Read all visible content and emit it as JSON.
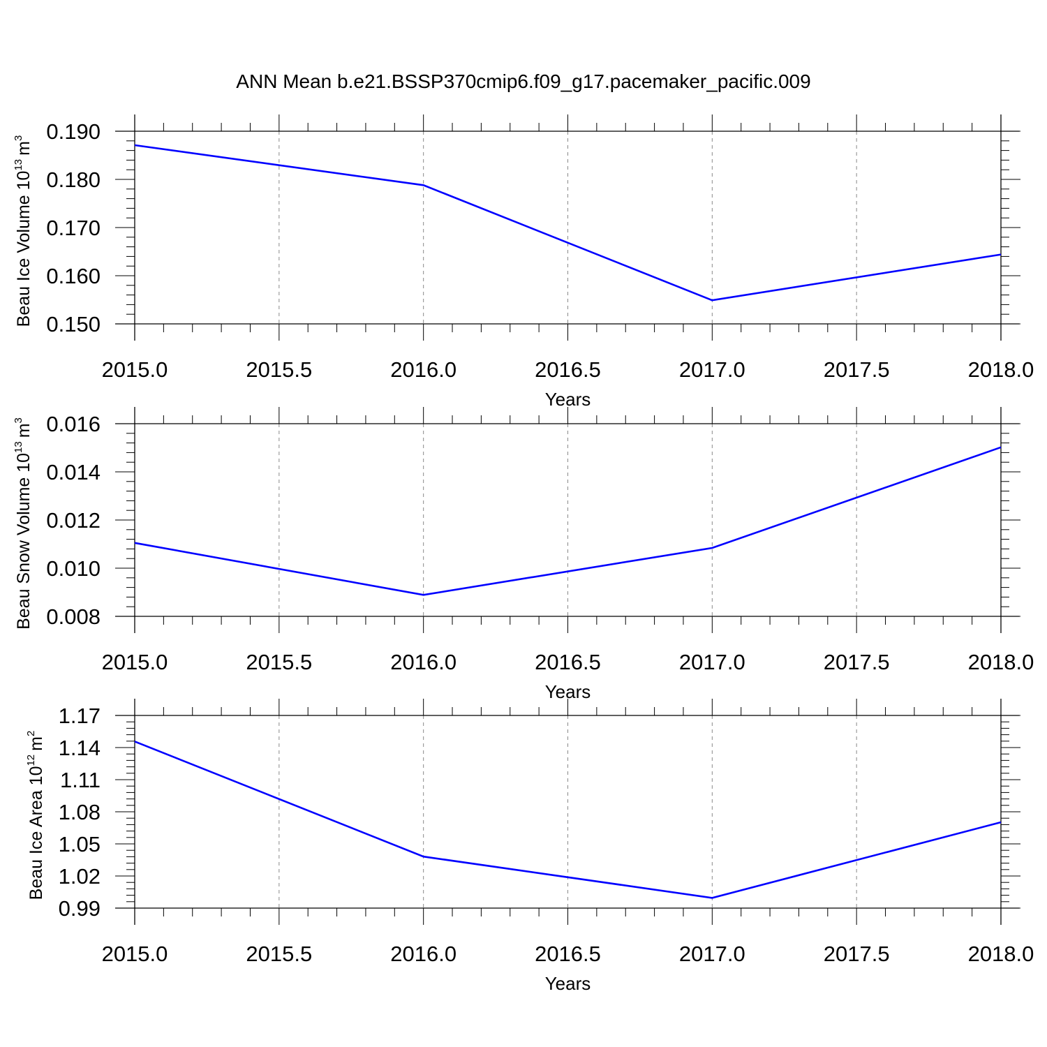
{
  "title": "ANN Mean b.e21.BSSP370cmip6.f09_g17.pacemaker_pacific.009",
  "colors": {
    "series": "#0000ff",
    "axis": "#000000",
    "grid": "#888888"
  },
  "chart_data": [
    {
      "type": "line",
      "xlabel": "Years",
      "ylabel": {
        "text": "Beau Ice Volume 10",
        "exp": "13",
        "unit": "m",
        "unit_exp": "3"
      },
      "xlim": [
        2015.0,
        2018.0
      ],
      "ylim": [
        0.15,
        0.19
      ],
      "xticks": [
        "2015.0",
        "2015.5",
        "2016.0",
        "2016.5",
        "2017.0",
        "2017.5",
        "2018.0"
      ],
      "yticks": [
        "0.150",
        "0.160",
        "0.170",
        "0.180",
        "0.190"
      ],
      "grid": "vertical dashed at major x ticks",
      "series": [
        {
          "x": [
            2015,
            2016,
            2017,
            2018
          ],
          "values": [
            0.1871,
            0.1788,
            0.1549,
            0.1644
          ]
        }
      ]
    },
    {
      "type": "line",
      "xlabel": "Years",
      "ylabel": {
        "text": "Beau Snow Volume 10",
        "exp": "13",
        "unit": "m",
        "unit_exp": "3"
      },
      "xlim": [
        2015.0,
        2018.0
      ],
      "ylim": [
        0.008,
        0.016
      ],
      "xticks": [
        "2015.0",
        "2015.5",
        "2016.0",
        "2016.5",
        "2017.0",
        "2017.5",
        "2018.0"
      ],
      "yticks": [
        "0.008",
        "0.010",
        "0.012",
        "0.014",
        "0.016"
      ],
      "grid": "vertical dashed at major x ticks",
      "series": [
        {
          "x": [
            2015,
            2016,
            2017,
            2018
          ],
          "values": [
            0.01105,
            0.00889,
            0.01084,
            0.01502
          ]
        }
      ]
    },
    {
      "type": "line",
      "xlabel": "Years",
      "ylabel": {
        "text": "Beau Ice Area 10",
        "exp": "12",
        "unit": "m",
        "unit_exp": "2"
      },
      "xlim": [
        2015.0,
        2018.0
      ],
      "ylim": [
        0.99,
        1.17
      ],
      "xticks": [
        "2015.0",
        "2015.5",
        "2016.0",
        "2016.5",
        "2017.0",
        "2017.5",
        "2018.0"
      ],
      "yticks": [
        "0.99",
        "1.02",
        "1.05",
        "1.08",
        "1.11",
        "1.14",
        "1.17"
      ],
      "grid": "vertical dashed at major x ticks",
      "series": [
        {
          "x": [
            2015,
            2016,
            2017,
            2018
          ],
          "values": [
            1.1457,
            1.0381,
            0.9995,
            1.0702
          ]
        }
      ]
    }
  ]
}
